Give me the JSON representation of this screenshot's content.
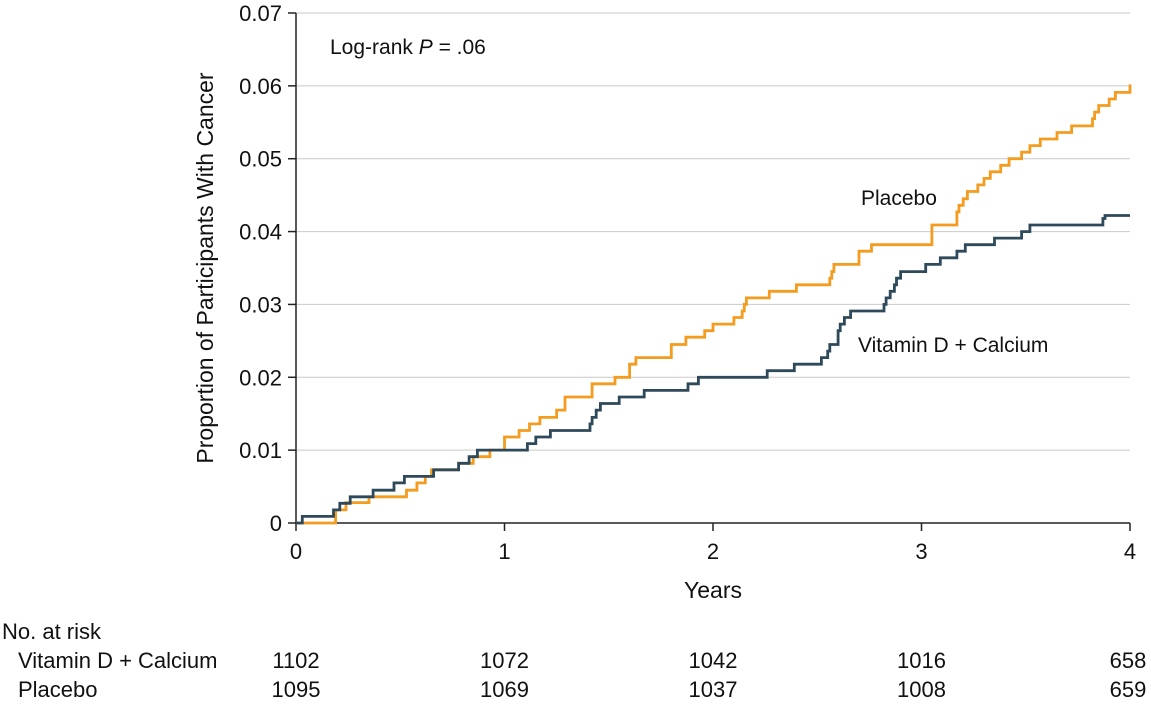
{
  "chart_data": {
    "type": "line",
    "title": "",
    "xlabel": "Years",
    "ylabel": "Proportion of Participants With Cancer",
    "xlim": [
      0,
      4
    ],
    "ylim": [
      0,
      0.07
    ],
    "x_ticks": [
      "0",
      "1",
      "2",
      "3",
      "4"
    ],
    "y_ticks": [
      "0",
      "0.01",
      "0.02",
      "0.03",
      "0.04",
      "0.05",
      "0.06",
      "0.07"
    ],
    "grid": "horizontal",
    "annotation": {
      "prefix": "Log-rank ",
      "italic": "P",
      "suffix": " = .06"
    },
    "colors": {
      "placebo": "#F39C1F",
      "vitd": "#2E4A5A"
    },
    "series": [
      {
        "name": "Placebo",
        "step": [
          [
            0,
            0
          ],
          [
            0.19,
            0.001
          ],
          [
            0.19,
            0.0018
          ],
          [
            0.24,
            0.0028
          ],
          [
            0.35,
            0.0036
          ],
          [
            0.53,
            0.0045
          ],
          [
            0.58,
            0.0055
          ],
          [
            0.62,
            0.0064
          ],
          [
            0.65,
            0.0073
          ],
          [
            0.78,
            0.0082
          ],
          [
            0.85,
            0.0091
          ],
          [
            0.93,
            0.01
          ],
          [
            1.0,
            0.0118
          ],
          [
            1.07,
            0.0127
          ],
          [
            1.12,
            0.0136
          ],
          [
            1.17,
            0.0145
          ],
          [
            1.25,
            0.0155
          ],
          [
            1.29,
            0.0173
          ],
          [
            1.42,
            0.0191
          ],
          [
            1.53,
            0.02
          ],
          [
            1.6,
            0.0218
          ],
          [
            1.63,
            0.0227
          ],
          [
            1.8,
            0.0245
          ],
          [
            1.87,
            0.0255
          ],
          [
            1.96,
            0.0264
          ],
          [
            2.0,
            0.0273
          ],
          [
            2.1,
            0.0282
          ],
          [
            2.14,
            0.0291
          ],
          [
            2.15,
            0.03
          ],
          [
            2.16,
            0.0309
          ],
          [
            2.27,
            0.0318
          ],
          [
            2.4,
            0.0327
          ],
          [
            2.56,
            0.0336
          ],
          [
            2.57,
            0.0345
          ],
          [
            2.58,
            0.0355
          ],
          [
            2.7,
            0.0373
          ],
          [
            2.76,
            0.0382
          ],
          [
            3.05,
            0.0409
          ],
          [
            3.17,
            0.0427
          ],
          [
            3.18,
            0.0436
          ],
          [
            3.2,
            0.0445
          ],
          [
            3.22,
            0.0455
          ],
          [
            3.27,
            0.0464
          ],
          [
            3.3,
            0.0473
          ],
          [
            3.33,
            0.0482
          ],
          [
            3.38,
            0.0491
          ],
          [
            3.42,
            0.05
          ],
          [
            3.48,
            0.0509
          ],
          [
            3.52,
            0.0518
          ],
          [
            3.57,
            0.0527
          ],
          [
            3.65,
            0.0536
          ],
          [
            3.72,
            0.0545
          ],
          [
            3.82,
            0.0555
          ],
          [
            3.83,
            0.0564
          ],
          [
            3.85,
            0.0573
          ],
          [
            3.9,
            0.0582
          ],
          [
            3.93,
            0.0591
          ],
          [
            4.0,
            0.0602
          ],
          [
            4.0,
            0.0602
          ]
        ]
      },
      {
        "name": "Vitamin D + Calcium",
        "step": [
          [
            0,
            0
          ],
          [
            0.03,
            0.0009
          ],
          [
            0.18,
            0.0018
          ],
          [
            0.21,
            0.0027
          ],
          [
            0.26,
            0.0036
          ],
          [
            0.37,
            0.0045
          ],
          [
            0.47,
            0.0055
          ],
          [
            0.52,
            0.0064
          ],
          [
            0.66,
            0.0073
          ],
          [
            0.78,
            0.0082
          ],
          [
            0.83,
            0.0091
          ],
          [
            0.87,
            0.01
          ],
          [
            1.11,
            0.0109
          ],
          [
            1.15,
            0.0118
          ],
          [
            1.22,
            0.0127
          ],
          [
            1.41,
            0.0136
          ],
          [
            1.42,
            0.0145
          ],
          [
            1.44,
            0.0155
          ],
          [
            1.46,
            0.0164
          ],
          [
            1.55,
            0.0173
          ],
          [
            1.67,
            0.0182
          ],
          [
            1.88,
            0.0191
          ],
          [
            1.93,
            0.02
          ],
          [
            2.26,
            0.0209
          ],
          [
            2.39,
            0.0218
          ],
          [
            2.52,
            0.0227
          ],
          [
            2.55,
            0.0236
          ],
          [
            2.56,
            0.0245
          ],
          [
            2.6,
            0.0264
          ],
          [
            2.61,
            0.0273
          ],
          [
            2.63,
            0.0282
          ],
          [
            2.66,
            0.0291
          ],
          [
            2.82,
            0.03
          ],
          [
            2.83,
            0.0309
          ],
          [
            2.85,
            0.0318
          ],
          [
            2.87,
            0.0327
          ],
          [
            2.88,
            0.0336
          ],
          [
            2.9,
            0.0345
          ],
          [
            3.02,
            0.0355
          ],
          [
            3.09,
            0.0364
          ],
          [
            3.17,
            0.0373
          ],
          [
            3.21,
            0.0382
          ],
          [
            3.35,
            0.0391
          ],
          [
            3.48,
            0.04
          ],
          [
            3.52,
            0.0409
          ],
          [
            3.87,
            0.0418
          ],
          [
            3.88,
            0.0422
          ],
          [
            4.0,
            0.0422
          ]
        ]
      }
    ],
    "series_labels": [
      {
        "series": "Placebo",
        "text": "Placebo"
      },
      {
        "series": "Vitamin D + Calcium",
        "text": "Vitamin D + Calcium"
      }
    ]
  },
  "risk_table": {
    "title": "No. at risk",
    "rows": [
      {
        "label": "Vitamin D + Calcium",
        "values": [
          "1102",
          "1072",
          "1042",
          "1016",
          "658"
        ]
      },
      {
        "label": "Placebo",
        "values": [
          "1095",
          "1069",
          "1037",
          "1008",
          "659"
        ]
      }
    ]
  }
}
